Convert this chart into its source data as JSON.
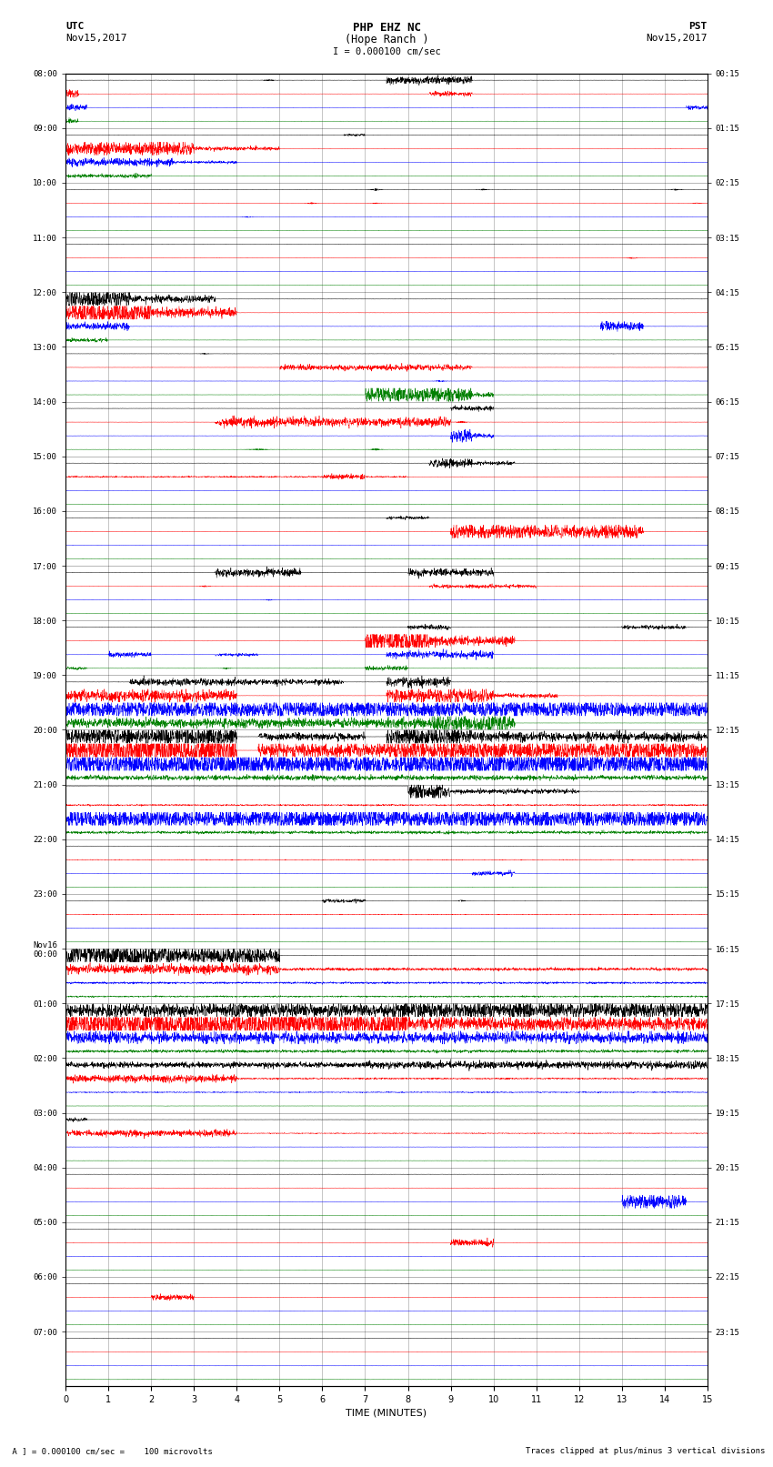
{
  "title_line1": "PHP EHZ NC",
  "title_line2": "(Hope Ranch )",
  "scale_label": "I = 0.000100 cm/sec",
  "utc_label": "UTC",
  "utc_date": "Nov15,2017",
  "pst_label": "PST",
  "pst_date": "Nov15,2017",
  "xlabel": "TIME (MINUTES)",
  "footer_left": " A ] = 0.000100 cm/sec =    100 microvolts",
  "footer_right": "Traces clipped at plus/minus 3 vertical divisions",
  "left_times": [
    "08:00",
    "09:00",
    "10:00",
    "11:00",
    "12:00",
    "13:00",
    "14:00",
    "15:00",
    "16:00",
    "17:00",
    "18:00",
    "19:00",
    "20:00",
    "21:00",
    "22:00",
    "23:00",
    "Nov16\n00:00",
    "01:00",
    "02:00",
    "03:00",
    "04:00",
    "05:00",
    "06:00",
    "07:00"
  ],
  "right_times": [
    "00:15",
    "01:15",
    "02:15",
    "03:15",
    "04:15",
    "05:15",
    "06:15",
    "07:15",
    "08:15",
    "09:15",
    "10:15",
    "11:15",
    "12:15",
    "13:15",
    "14:15",
    "15:15",
    "16:15",
    "17:15",
    "18:15",
    "19:15",
    "20:15",
    "21:15",
    "22:15",
    "23:15"
  ],
  "n_rows": 24,
  "trace_colors": [
    "black",
    "red",
    "blue",
    "green"
  ],
  "bg_color": "white",
  "xlim": [
    0,
    15
  ],
  "xticks": [
    0,
    1,
    2,
    3,
    4,
    5,
    6,
    7,
    8,
    9,
    10,
    11,
    12,
    13,
    14,
    15
  ],
  "fig_width": 8.5,
  "fig_height": 16.13,
  "dpi": 100,
  "seed": 42
}
